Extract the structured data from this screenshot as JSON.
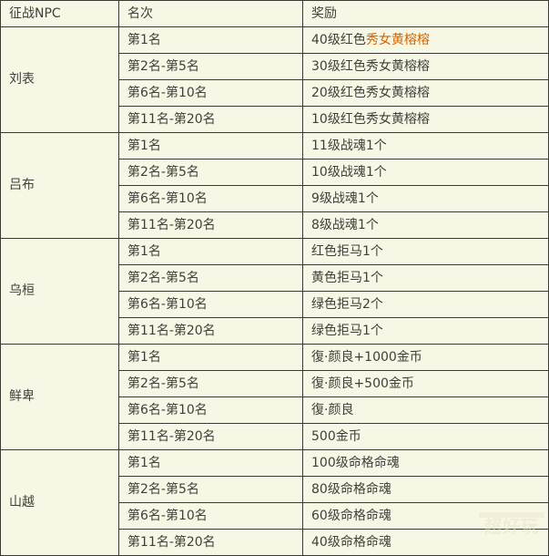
{
  "colors": {
    "background": "#f7f7e6",
    "border": "#3b3b33",
    "text": "#40403a",
    "highlight": "#cc6600",
    "watermark": "#e9e2c6"
  },
  "table": {
    "headers": [
      {
        "label": "征战NPC"
      },
      {
        "label": "名次"
      },
      {
        "label": "奖励"
      }
    ],
    "groups": [
      {
        "npc": "刘表",
        "rows": [
          {
            "rank": "第1名",
            "reward": [
              {
                "text": "40级红色",
                "highlight": false
              },
              {
                "text": "秀女黄榕榕",
                "highlight": true
              }
            ]
          },
          {
            "rank": "第2名-第5名",
            "reward": [
              {
                "text": "30级红色秀女黄榕榕",
                "highlight": false
              }
            ]
          },
          {
            "rank": "第6名-第10名",
            "reward": [
              {
                "text": "20级红色秀女黄榕榕",
                "highlight": false
              }
            ]
          },
          {
            "rank": "第11名-第20名",
            "reward": [
              {
                "text": "10级红色秀女黄榕榕",
                "highlight": false
              }
            ]
          }
        ]
      },
      {
        "npc": "吕布",
        "rows": [
          {
            "rank": "第1名",
            "reward": [
              {
                "text": "11级战魂1个",
                "highlight": false
              }
            ]
          },
          {
            "rank": "第2名-第5名",
            "reward": [
              {
                "text": "10级战魂1个",
                "highlight": false
              }
            ]
          },
          {
            "rank": "第6名-第10名",
            "reward": [
              {
                "text": "9级战魂1个",
                "highlight": false
              }
            ]
          },
          {
            "rank": "第11名-第20名",
            "reward": [
              {
                "text": "8级战魂1个",
                "highlight": false
              }
            ]
          }
        ]
      },
      {
        "npc": "乌桓",
        "rows": [
          {
            "rank": "第1名",
            "reward": [
              {
                "text": "红色拒马1个",
                "highlight": false
              }
            ]
          },
          {
            "rank": "第2名-第5名",
            "reward": [
              {
                "text": "黄色拒马1个",
                "highlight": false
              }
            ]
          },
          {
            "rank": "第6名-第10名",
            "reward": [
              {
                "text": "绿色拒马2个",
                "highlight": false
              }
            ]
          },
          {
            "rank": "第11名-第20名",
            "reward": [
              {
                "text": "绿色拒马1个",
                "highlight": false
              }
            ]
          }
        ]
      },
      {
        "npc": "鲜卑",
        "rows": [
          {
            "rank": "第1名",
            "reward": [
              {
                "text": "復·颜良+1000金币",
                "highlight": false
              }
            ]
          },
          {
            "rank": "第2名-第5名",
            "reward": [
              {
                "text": "復·颜良+500金币",
                "highlight": false
              }
            ]
          },
          {
            "rank": "第6名-第10名",
            "reward": [
              {
                "text": "復·颜良",
                "highlight": false
              }
            ]
          },
          {
            "rank": "第11名-第20名",
            "reward": [
              {
                "text": "500金币",
                "highlight": false
              }
            ]
          }
        ]
      },
      {
        "npc": "山越",
        "rows": [
          {
            "rank": "第1名",
            "reward": [
              {
                "text": "100级命格命魂",
                "highlight": false
              }
            ]
          },
          {
            "rank": "第2名-第5名",
            "reward": [
              {
                "text": "80级命格命魂",
                "highlight": false
              }
            ]
          },
          {
            "rank": "第6名-第10名",
            "reward": [
              {
                "text": "60级命格命魂",
                "highlight": false
              }
            ]
          },
          {
            "rank": "第11名-第20名",
            "reward": [
              {
                "text": "40级命格命魂",
                "highlight": false
              }
            ]
          }
        ]
      }
    ]
  },
  "watermark": {
    "text": "超好玩"
  }
}
